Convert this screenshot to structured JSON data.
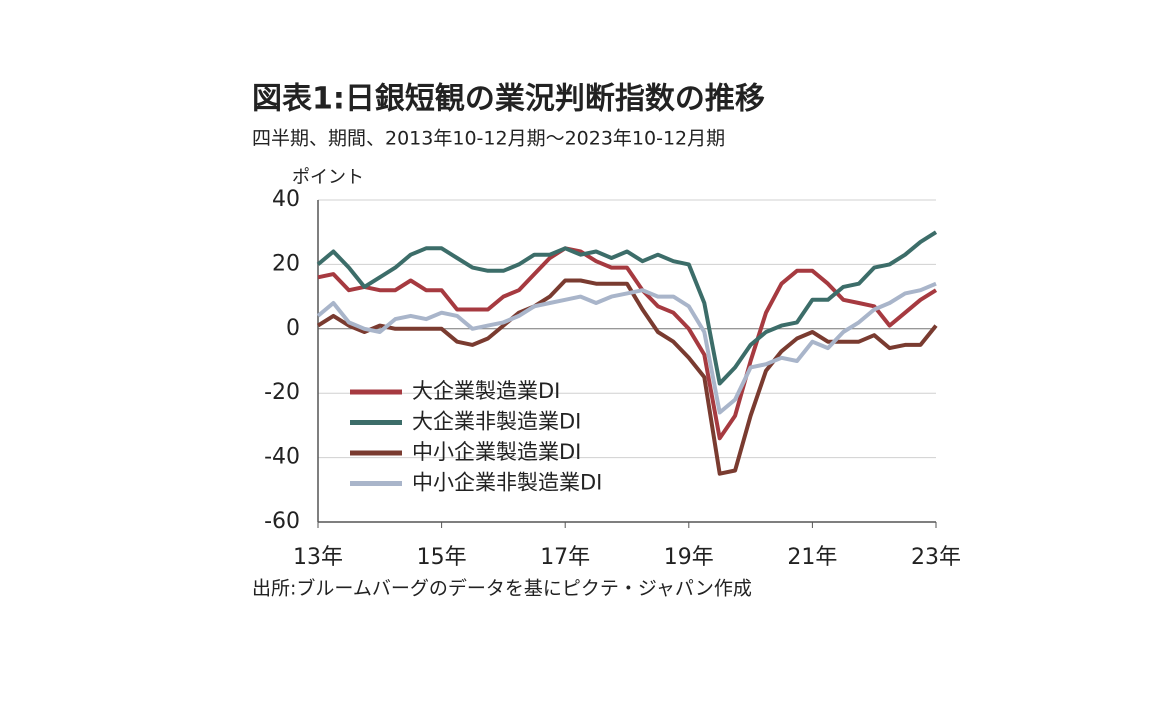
{
  "chart_data": {
    "type": "line",
    "title": "図表1:日銀短観の業況判断指数の推移",
    "subtitle": "四半期、期間、2013年10-12月期～2023年10-12月期",
    "y_label": "ポイント",
    "source": "出所:ブルームバーグのデータを基にピクテ・ジャパン作成",
    "categories": [
      "13年",
      null,
      null,
      null,
      null,
      null,
      null,
      null,
      "15年",
      null,
      null,
      null,
      null,
      null,
      null,
      null,
      "17年",
      null,
      null,
      null,
      null,
      null,
      null,
      null,
      "19年",
      null,
      null,
      null,
      null,
      null,
      null,
      null,
      "21年",
      null,
      null,
      null,
      null,
      null,
      null,
      null,
      "23年"
    ],
    "ylim": [
      -60,
      40
    ],
    "yticks": [
      -60,
      -40,
      -20,
      0,
      20,
      40
    ],
    "grid": true,
    "legend": "left",
    "series": [
      {
        "name": "大企業製造業DI",
        "color": "#a63a40",
        "values": [
          16,
          17,
          12,
          13,
          12,
          12,
          15,
          12,
          12,
          6,
          6,
          6,
          10,
          12,
          17,
          22,
          25,
          24,
          21,
          19,
          19,
          12,
          7,
          5,
          0,
          -8,
          -34,
          -27,
          -10,
          5,
          14,
          18,
          18,
          14,
          9,
          8,
          7,
          1,
          5,
          9,
          12
        ]
      },
      {
        "name": "大企業非製造業DI",
        "color": "#3c6d69",
        "values": [
          20,
          24,
          19,
          13,
          16,
          19,
          23,
          25,
          25,
          22,
          19,
          18,
          18,
          20,
          23,
          23,
          25,
          23,
          24,
          22,
          24,
          21,
          23,
          21,
          20,
          8,
          -17,
          -12,
          -5,
          -1,
          1,
          2,
          9,
          9,
          13,
          14,
          19,
          20,
          23,
          27,
          30
        ]
      },
      {
        "name": "中小企業製造業DI",
        "color": "#7a3b30",
        "values": [
          1,
          4,
          1,
          -1,
          1,
          0,
          0,
          0,
          0,
          -4,
          -5,
          -3,
          1,
          5,
          7,
          10,
          15,
          15,
          14,
          14,
          14,
          6,
          -1,
          -4,
          -9,
          -15,
          -45,
          -44,
          -27,
          -13,
          -7,
          -3,
          -1,
          -4,
          -4,
          -4,
          -2,
          -6,
          -5,
          -5,
          1
        ]
      },
      {
        "name": "中小企業非製造業DI",
        "color": "#a9b5ca",
        "values": [
          4,
          8,
          2,
          0,
          -1,
          3,
          4,
          3,
          5,
          4,
          0,
          1,
          2,
          4,
          7,
          8,
          9,
          10,
          8,
          10,
          11,
          12,
          10,
          10,
          7,
          -1,
          -26,
          -22,
          -12,
          -11,
          -9,
          -10,
          -4,
          -6,
          -1,
          2,
          6,
          8,
          11,
          12,
          14
        ]
      }
    ]
  }
}
